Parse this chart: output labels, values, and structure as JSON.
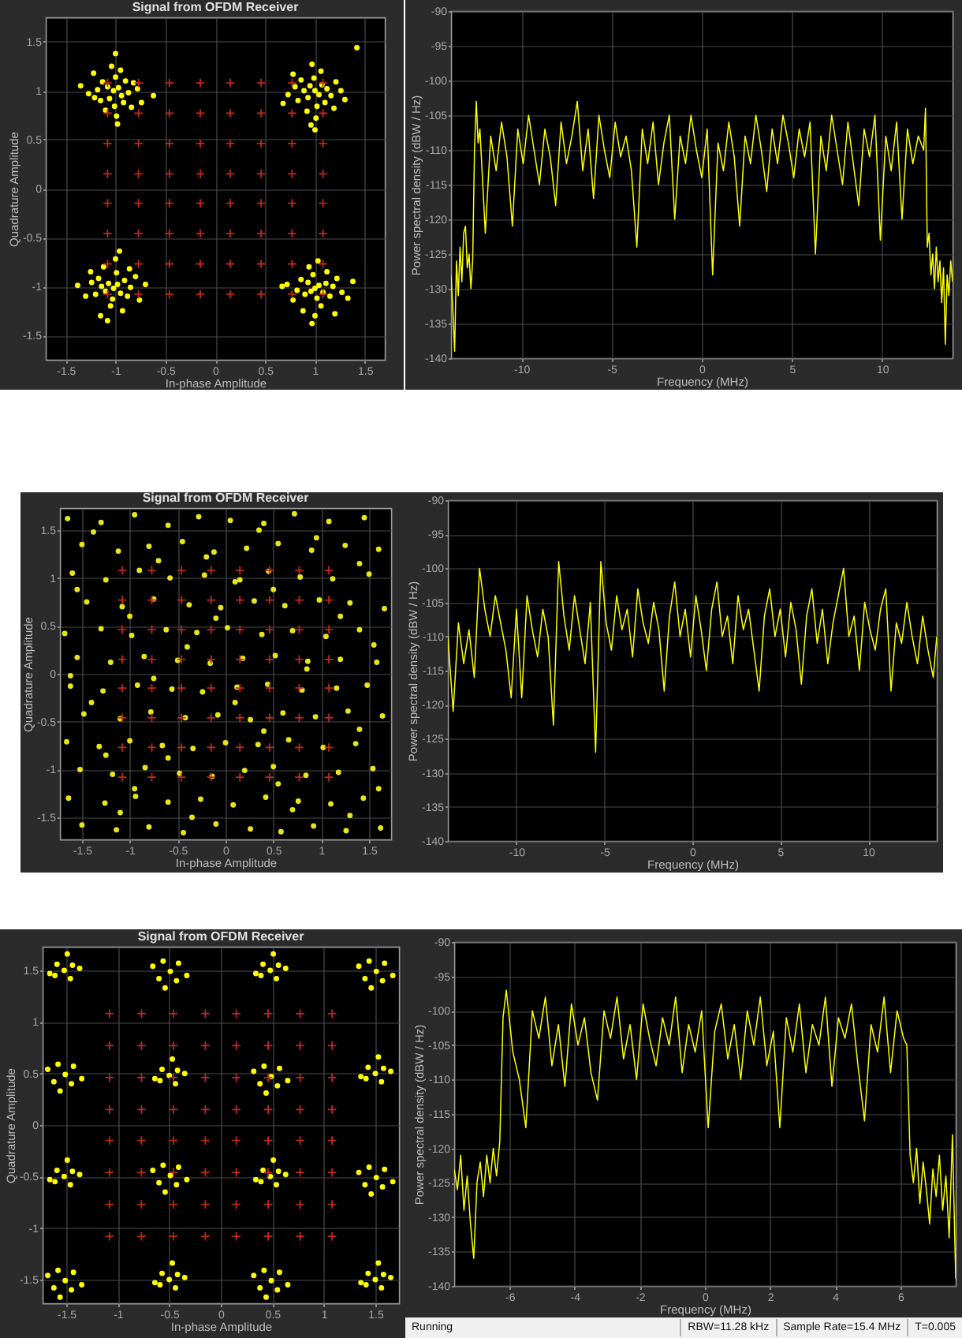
{
  "chart_data": [
    {
      "type": "scatter",
      "title": "Signal from OFDM Receiver",
      "xlabel": "In-phase Amplitude",
      "ylabel": "Quadrature Amplitude",
      "xlim": [
        -1.7,
        1.7
      ],
      "ylim": [
        -1.75,
        1.75
      ],
      "xticks": [
        -1.5,
        -1,
        -0.5,
        0,
        0.5,
        1,
        1.5
      ],
      "yticks": [
        -1.5,
        -1,
        -0.5,
        0,
        0.5,
        1,
        1.5
      ],
      "grid": true,
      "marker": "circle",
      "series": [
        {
          "color": "#ffff00",
          "x": [
            -1.02,
            -0.97,
            -1.08,
            -0.94,
            -1.06,
            -0.9,
            -1.13,
            -0.92,
            -1.15,
            -1.0,
            -0.87,
            -1.18,
            -1.01,
            -0.82,
            -1.21,
            -0.95,
            -1.1,
            -0.84,
            -1.22,
            -0.78,
            -1.27,
            -0.99,
            -1.04,
            -0.74,
            -1.35,
            -0.62,
            -1.0,
            -0.98,
            1.0,
            1.04,
            0.95,
            1.07,
            0.93,
            1.12,
            0.89,
            1.1,
            0.86,
            0.99,
            1.16,
            0.83,
            1.02,
            1.21,
            0.8,
            1.06,
            0.92,
            1.19,
            0.78,
            1.26,
            0.73,
            1.01,
            0.97,
            1.3,
            0.68,
            1.42,
            1.0,
            0.96,
            -1.02,
            -0.98,
            -1.07,
            -0.95,
            -1.1,
            -0.91,
            -1.14,
            -1.03,
            -0.88,
            -1.17,
            -0.99,
            -0.85,
            -1.2,
            -1.05,
            -0.8,
            -1.24,
            -0.93,
            -1.12,
            -0.76,
            -1.3,
            -1.0,
            -0.7,
            -1.38,
            -1.08,
            -0.96,
            -1.15,
            -0.86,
            -1.25,
            1.0,
            1.04,
            0.96,
            1.08,
            0.93,
            1.11,
            0.9,
            1.02,
            1.15,
            0.86,
            1.18,
            0.98,
            0.82,
            1.22,
            1.06,
            0.78,
            1.27,
            0.94,
            1.12,
            0.72,
            1.33,
            1.0,
            0.88,
            1.2,
            0.67,
            1.38,
            1.03,
            0.97
          ],
          "values": [
            1.0,
            1.03,
            1.04,
            0.95,
            0.92,
            1.1,
            1.09,
            0.88,
            0.9,
            1.14,
            0.98,
            1.01,
            0.84,
            1.08,
            0.93,
            1.21,
            0.8,
            0.83,
            1.18,
            1.02,
            0.97,
            0.74,
            1.25,
            0.88,
            1.05,
            0.95,
            1.38,
            0.66,
            1.0,
            0.96,
            1.05,
            1.06,
            0.93,
            1.02,
            1.0,
            0.88,
            1.11,
            1.13,
            0.95,
            0.9,
            0.84,
            1.09,
            1.04,
            1.2,
            0.79,
            0.82,
            1.17,
            1.0,
            0.96,
            0.72,
            1.27,
            0.91,
            0.87,
            1.44,
            0.6,
            0.65,
            -1.02,
            -0.98,
            -0.97,
            -1.07,
            -1.05,
            -0.94,
            -1.0,
            -1.13,
            -1.1,
            -0.92,
            -0.86,
            -1.01,
            -1.08,
            -1.2,
            -0.9,
            -0.96,
            -1.25,
            -0.8,
            -1.14,
            -1.1,
            -0.72,
            -0.98,
            -0.99,
            -1.35,
            -0.64,
            -1.3,
            -0.82,
            -0.85,
            -1.02,
            -0.99,
            -1.05,
            -1.06,
            -0.96,
            -0.97,
            -1.08,
            -1.12,
            -1.1,
            -0.93,
            -1.0,
            -0.88,
            -1.04,
            -0.92,
            -1.2,
            -1.14,
            -1.06,
            -0.8,
            -0.85,
            -0.98,
            -1.12,
            -1.3,
            -1.25,
            -1.28,
            -1.0,
            -0.95,
            -0.74,
            -1.38
          ]
        },
        {
          "color": "#c0281c",
          "marker": "cross",
          "x": [
            -1.08,
            -0.77,
            -0.46,
            -0.15,
            0.15,
            0.46,
            0.77,
            1.08,
            -1.08,
            -0.77,
            -0.46,
            -0.15,
            0.15,
            0.46,
            0.77,
            1.08,
            -1.08,
            -0.77,
            -0.46,
            -0.15,
            0.15,
            0.46,
            0.77,
            1.08,
            -1.08,
            -0.77,
            -0.46,
            -0.15,
            0.15,
            0.46,
            0.77,
            1.08,
            -1.08,
            -0.77,
            -0.46,
            -0.15,
            0.15,
            0.46,
            0.77,
            1.08,
            -1.08,
            -0.77,
            -0.46,
            -0.15,
            0.15,
            0.46,
            0.77,
            1.08,
            -1.08,
            -0.77,
            -0.46,
            -0.15,
            0.15,
            0.46,
            0.77,
            1.08,
            -1.08,
            -0.77,
            -0.46,
            -0.15,
            0.15,
            0.46,
            0.77,
            1.08
          ],
          "values": [
            1.08,
            1.08,
            1.08,
            1.08,
            1.08,
            1.08,
            1.08,
            1.08,
            0.77,
            0.77,
            0.77,
            0.77,
            0.77,
            0.77,
            0.77,
            0.77,
            0.46,
            0.46,
            0.46,
            0.46,
            0.46,
            0.46,
            0.46,
            0.46,
            0.15,
            0.15,
            0.15,
            0.15,
            0.15,
            0.15,
            0.15,
            0.15,
            -0.15,
            -0.15,
            -0.15,
            -0.15,
            -0.15,
            -0.15,
            -0.15,
            -0.15,
            -0.46,
            -0.46,
            -0.46,
            -0.46,
            -0.46,
            -0.46,
            -0.46,
            -0.46,
            -0.77,
            -0.77,
            -0.77,
            -0.77,
            -0.77,
            -0.77,
            -0.77,
            -0.77,
            -1.08,
            -1.08,
            -1.08,
            -1.08,
            -1.08,
            -1.08,
            -1.08,
            -1.08
          ]
        }
      ]
    },
    {
      "type": "line",
      "xlabel": "Frequency (MHz)",
      "ylabel": "Power spectral density (dBW / Hz)",
      "xlim": [
        -13.9,
        13.9
      ],
      "ylim": [
        -140,
        -90
      ],
      "xticks": [
        -10,
        -5,
        0,
        5,
        10
      ],
      "yticks": [
        -140,
        -135,
        -130,
        -125,
        -120,
        -115,
        -110,
        -105,
        -100,
        -95,
        -90
      ],
      "grid": true,
      "x": [
        -13.9,
        -13.8,
        -13.7,
        -13.6,
        -13.5,
        -13.4,
        -13.3,
        -13.2,
        -13.1,
        -13.0,
        -12.9,
        -12.8,
        -12.7,
        -12.6,
        -12.5,
        -12.4,
        -12.3,
        -12,
        -11.7,
        -11.4,
        -11.1,
        -10.8,
        -10.5,
        -10.2,
        -9.9,
        -9.6,
        -9.3,
        -9,
        -8.7,
        -8.4,
        -8.1,
        -7.8,
        -7.5,
        -7.2,
        -6.9,
        -6.6,
        -6.3,
        -6,
        -5.7,
        -5.4,
        -5.1,
        -4.8,
        -4.5,
        -4.2,
        -3.9,
        -3.6,
        -3.3,
        -3,
        -2.7,
        -2.4,
        -2.1,
        -1.8,
        -1.5,
        -1.2,
        -0.9,
        -0.6,
        -0.3,
        0,
        0.3,
        0.6,
        0.9,
        1.2,
        1.5,
        1.8,
        2.1,
        2.4,
        2.7,
        3,
        3.3,
        3.6,
        3.9,
        4.2,
        4.5,
        4.8,
        5.1,
        5.4,
        5.7,
        6,
        6.3,
        6.6,
        6.9,
        7.2,
        7.5,
        7.8,
        8.1,
        8.4,
        8.7,
        9,
        9.3,
        9.6,
        9.9,
        10.2,
        10.5,
        10.8,
        11.1,
        11.4,
        11.7,
        12,
        12.3,
        12.4,
        12.5,
        12.6,
        12.7,
        12.8,
        12.9,
        13.0,
        13.1,
        13.2,
        13.3,
        13.4,
        13.5,
        13.6,
        13.7,
        13.8,
        13.9
      ],
      "series": [
        {
          "color": "#ffff00",
          "values": [
            -128,
            -133,
            -139,
            -126,
            -131,
            -124,
            -129,
            -122,
            -121,
            -127,
            -125,
            -130,
            -126,
            -110,
            -103,
            -109,
            -107,
            -122,
            -108,
            -113,
            -106,
            -111,
            -121,
            -107,
            -112,
            -105,
            -110,
            -115,
            -107,
            -111,
            -118,
            -106,
            -112,
            -108,
            -103,
            -113,
            -107,
            -117,
            -105,
            -110,
            -114,
            -106,
            -111,
            -108,
            -113,
            -124,
            -107,
            -112,
            -106,
            -115,
            -109,
            -105,
            -120,
            -108,
            -112,
            -105,
            -110,
            -114,
            -107,
            -128,
            -109,
            -113,
            -106,
            -111,
            -121,
            -108,
            -112,
            -105,
            -110,
            -116,
            -107,
            -112,
            -105,
            -109,
            -114,
            -107,
            -111,
            -106,
            -125,
            -108,
            -113,
            -105,
            -110,
            -115,
            -106,
            -112,
            -118,
            -107,
            -111,
            -105,
            -123,
            -108,
            -113,
            -106,
            -120,
            -107,
            -112,
            -108,
            -110,
            -104,
            -124,
            -122,
            -128,
            -125,
            -130,
            -124,
            -129,
            -126,
            -132,
            -127,
            -138,
            -128,
            -131,
            -126,
            -129
          ]
        }
      ]
    },
    {
      "type": "scatter",
      "title": "Signal from OFDM Receiver",
      "xlabel": "In-phase Amplitude",
      "ylabel": "Quadrature Amplitude",
      "xlim": [
        -1.73,
        1.73
      ],
      "ylim": [
        -1.73,
        1.73
      ],
      "xticks": [
        -1.5,
        -1,
        -0.5,
        0,
        0.5,
        1,
        1.5
      ],
      "yticks": [
        -1.5,
        -1,
        -0.5,
        0,
        0.5,
        1,
        1.5
      ],
      "grid": true,
      "marker": "circle",
      "series": [
        {
          "color": "#e6e619",
          "x": [
            -1.65,
            -1.3,
            -0.95,
            -0.6,
            -0.28,
            0.05,
            0.4,
            0.72,
            1.08,
            1.45,
            -1.5,
            -1.12,
            -0.8,
            -0.45,
            -0.12,
            0.22,
            0.55,
            0.9,
            1.25,
            1.6,
            -1.6,
            -1.25,
            -0.9,
            -0.58,
            -0.22,
            0.1,
            0.45,
            0.78,
            1.12,
            1.5,
            -1.45,
            -1.08,
            -0.75,
            -0.38,
            -0.05,
            0.3,
            0.62,
            0.98,
            1.3,
            1.66,
            -1.68,
            -1.3,
            -0.98,
            -0.62,
            -0.3,
            0.02,
            0.38,
            0.7,
            1.05,
            1.4,
            -1.55,
            -1.2,
            -0.85,
            -0.5,
            -0.16,
            0.18,
            0.52,
            0.86,
            1.2,
            1.58,
            -1.62,
            -1.28,
            -0.92,
            -0.56,
            -0.24,
            0.12,
            0.44,
            0.8,
            1.16,
            1.48,
            -1.48,
            -1.1,
            -0.78,
            -0.42,
            -0.08,
            0.26,
            0.6,
            0.94,
            1.28,
            1.64,
            -1.66,
            -1.32,
            -1.0,
            -0.66,
            -0.34,
            0.0,
            0.34,
            0.66,
            1.02,
            1.36,
            -1.52,
            -1.18,
            -0.84,
            -0.48,
            -0.14,
            0.2,
            0.5,
            0.84,
            1.18,
            1.54,
            -1.64,
            -1.26,
            -0.94,
            -0.6,
            -0.26,
            0.08,
            0.42,
            0.76,
            1.1,
            1.44,
            -1.5,
            -1.14,
            -0.8,
            -0.44,
            -0.1,
            0.26,
            0.58,
            0.92,
            1.26,
            1.62,
            -1.38,
            -0.7,
            0.35,
            1.4,
            -1.0,
            0.5,
            1.55,
            -0.4,
            0.85,
            -1.4,
            0.1,
            1.4,
            -0.6,
            0.55,
            -1.1,
            1.3,
            -0.2,
            0.95,
            -1.55,
            -0.1,
            1.2,
            -0.75,
            0.4,
            -1.25,
            0.7,
            -0.35,
            1.6,
            -1.62,
            0.15,
            -0.95
          ],
          "values": [
            1.62,
            1.58,
            1.66,
            1.55,
            1.64,
            1.6,
            1.57,
            1.67,
            1.59,
            1.63,
            1.35,
            1.28,
            1.33,
            1.38,
            1.27,
            1.31,
            1.36,
            1.29,
            1.34,
            1.3,
            1.05,
            0.98,
            1.08,
            1.0,
            1.03,
            0.96,
            1.07,
            1.01,
            0.99,
            1.04,
            0.75,
            0.7,
            0.78,
            0.72,
            0.69,
            0.76,
            0.71,
            0.77,
            0.74,
            0.68,
            0.42,
            0.47,
            0.4,
            0.46,
            0.43,
            0.48,
            0.41,
            0.45,
            0.39,
            0.46,
            0.17,
            0.12,
            0.18,
            0.14,
            0.11,
            0.16,
            0.19,
            0.13,
            0.15,
            0.12,
            -0.13,
            -0.18,
            -0.12,
            -0.16,
            -0.19,
            -0.14,
            -0.11,
            -0.17,
            -0.15,
            -0.12,
            -0.42,
            -0.47,
            -0.4,
            -0.46,
            -0.43,
            -0.48,
            -0.41,
            -0.45,
            -0.39,
            -0.44,
            -0.71,
            -0.76,
            -0.7,
            -0.75,
            -0.78,
            -0.72,
            -0.74,
            -0.69,
            -0.77,
            -0.73,
            -1.0,
            -1.05,
            -0.98,
            -1.04,
            -1.07,
            -1.01,
            -0.97,
            -1.06,
            -1.03,
            -0.99,
            -1.3,
            -1.35,
            -1.28,
            -1.34,
            -1.31,
            -1.37,
            -1.29,
            -1.33,
            -1.36,
            -1.3,
            -1.58,
            -1.63,
            -1.6,
            -1.66,
            -1.57,
            -1.62,
            -1.65,
            -1.59,
            -1.64,
            -1.61,
            1.48,
            1.18,
            1.5,
            1.15,
            0.6,
            0.88,
            0.3,
            0.28,
            0.05,
            -0.3,
            -0.3,
            -0.58,
            -0.88,
            -1.15,
            -1.45,
            -1.48,
            1.22,
            1.42,
            0.88,
            0.58,
            0.6,
            -0.05,
            -0.6,
            -0.85,
            -1.42,
            -1.5,
            -1.2,
            -0.02,
            0.98,
            -1.2
          ]
        },
        {
          "color": "#c0281c",
          "marker": "cross",
          "x": [
            -1.08,
            -0.77,
            -0.46,
            -0.15,
            0.15,
            0.46,
            0.77,
            1.08,
            -1.08,
            -0.77,
            -0.46,
            -0.15,
            0.15,
            0.46,
            0.77,
            1.08,
            -1.08,
            -0.77,
            -0.46,
            -0.15,
            0.15,
            0.46,
            0.77,
            1.08,
            -1.08,
            -0.77,
            -0.46,
            -0.15,
            0.15,
            0.46,
            0.77,
            1.08,
            -1.08,
            -0.77,
            -0.46,
            -0.15,
            0.15,
            0.46,
            0.77,
            1.08,
            -1.08,
            -0.77,
            -0.46,
            -0.15,
            0.15,
            0.46,
            0.77,
            1.08,
            -1.08,
            -0.77,
            -0.46,
            -0.15,
            0.15,
            0.46,
            0.77,
            1.08,
            -1.08,
            -0.77,
            -0.46,
            -0.15,
            0.15,
            0.46,
            0.77,
            1.08
          ],
          "values": [
            1.08,
            1.08,
            1.08,
            1.08,
            1.08,
            1.08,
            1.08,
            1.08,
            0.77,
            0.77,
            0.77,
            0.77,
            0.77,
            0.77,
            0.77,
            0.77,
            0.46,
            0.46,
            0.46,
            0.46,
            0.46,
            0.46,
            0.46,
            0.46,
            0.15,
            0.15,
            0.15,
            0.15,
            0.15,
            0.15,
            0.15,
            0.15,
            -0.15,
            -0.15,
            -0.15,
            -0.15,
            -0.15,
            -0.15,
            -0.15,
            -0.15,
            -0.46,
            -0.46,
            -0.46,
            -0.46,
            -0.46,
            -0.46,
            -0.46,
            -0.46,
            -0.77,
            -0.77,
            -0.77,
            -0.77,
            -0.77,
            -0.77,
            -0.77,
            -0.77,
            -1.08,
            -1.08,
            -1.08,
            -1.08,
            -1.08,
            -1.08,
            -1.08,
            -1.08
          ]
        }
      ]
    },
    {
      "type": "line",
      "xlabel": "Frequency (MHz)",
      "ylabel": "Power spectral density (dBW / Hz)",
      "xlim": [
        -13.9,
        13.9
      ],
      "ylim": [
        -140,
        -90
      ],
      "xticks": [
        -10,
        -5,
        0,
        5,
        10
      ],
      "yticks": [
        -140,
        -135,
        -130,
        -125,
        -120,
        -115,
        -110,
        -105,
        -100,
        -95,
        -90
      ],
      "grid": true,
      "x": [
        -13.9,
        -13.6,
        -13.3,
        -13.0,
        -12.7,
        -12.4,
        -12.1,
        -11.8,
        -11.5,
        -11.2,
        -10.9,
        -10.6,
        -10.3,
        -10.0,
        -9.7,
        -9.4,
        -9.1,
        -8.8,
        -8.5,
        -8.2,
        -7.9,
        -7.6,
        -7.3,
        -7.0,
        -6.7,
        -6.4,
        -6.1,
        -5.8,
        -5.5,
        -5.2,
        -4.9,
        -4.6,
        -4.3,
        -4.0,
        -3.7,
        -3.4,
        -3.1,
        -2.8,
        -2.5,
        -2.2,
        -1.9,
        -1.6,
        -1.3,
        -1.0,
        -0.7,
        -0.4,
        -0.1,
        0.2,
        0.5,
        0.8,
        1.1,
        1.4,
        1.7,
        2.0,
        2.3,
        2.6,
        2.9,
        3.2,
        3.5,
        3.8,
        4.1,
        4.4,
        4.7,
        5.0,
        5.3,
        5.6,
        5.9,
        6.2,
        6.5,
        6.8,
        7.1,
        7.4,
        7.7,
        8.0,
        8.3,
        8.6,
        8.9,
        9.2,
        9.5,
        9.8,
        10.1,
        10.4,
        10.7,
        11.0,
        11.3,
        11.6,
        11.9,
        12.2,
        12.5,
        12.8,
        13.1,
        13.4,
        13.7,
        13.9
      ],
      "series": [
        {
          "color": "#ffff00",
          "values": [
            -110,
            -121,
            -108,
            -114,
            -109,
            -116,
            -100,
            -106,
            -110,
            -104,
            -108,
            -112,
            -119,
            -106,
            -119,
            -104,
            -109,
            -113,
            -106,
            -110,
            -123,
            -99,
            -107,
            -112,
            -104,
            -109,
            -114,
            -105,
            -127,
            -99,
            -108,
            -112,
            -104,
            -109,
            -106,
            -113,
            -103,
            -108,
            -111,
            -105,
            -109,
            -118,
            -107,
            -102,
            -110,
            -106,
            -113,
            -104,
            -109,
            -115,
            -106,
            -102,
            -110,
            -107,
            -114,
            -104,
            -109,
            -106,
            -112,
            -118,
            -107,
            -103,
            -110,
            -106,
            -113,
            -105,
            -109,
            -117,
            -107,
            -103,
            -111,
            -106,
            -114,
            -108,
            -104,
            -100,
            -110,
            -107,
            -115,
            -105,
            -109,
            -112,
            -106,
            -103,
            -118,
            -108,
            -111,
            -105,
            -110,
            -114,
            -107,
            -112,
            -116,
            -110
          ]
        }
      ]
    },
    {
      "type": "scatter",
      "title": "Signal from OFDM Receiver",
      "xlabel": "In-phase Amplitude",
      "ylabel": "Quadrature Amplitude",
      "xlim": [
        -1.73,
        1.73
      ],
      "ylim": [
        -1.73,
        1.73
      ],
      "xticks": [
        -1.5,
        -1,
        -0.5,
        0,
        0.5,
        1,
        1.5
      ],
      "yticks": [
        -1.5,
        -1,
        -0.5,
        0,
        0.5,
        1,
        1.5
      ],
      "grid": true,
      "marker": "circle",
      "series": [
        {
          "color": "#ffff00",
          "x": [
            -1.52,
            -1.44,
            -1.59,
            -1.46,
            -1.61,
            -1.37,
            -1.66,
            -1.49,
            -0.49,
            -0.56,
            -0.41,
            -0.6,
            -0.43,
            -0.66,
            -0.33,
            -0.54,
            0.48,
            0.56,
            0.41,
            0.54,
            0.39,
            0.63,
            0.34,
            0.51,
            1.51,
            1.44,
            1.59,
            1.4,
            1.57,
            1.34,
            1.67,
            1.46,
            -1.51,
            -1.58,
            -1.43,
            -1.62,
            -1.45,
            -1.68,
            -1.35,
            -1.56,
            -0.5,
            -0.42,
            -0.57,
            -0.44,
            -0.59,
            -0.35,
            -0.64,
            -0.47,
            0.49,
            0.42,
            0.57,
            0.38,
            0.55,
            0.32,
            0.65,
            0.44,
            1.5,
            1.58,
            1.43,
            1.56,
            1.41,
            1.65,
            1.36,
            1.53,
            -1.52,
            -1.44,
            -1.59,
            -1.46,
            -1.61,
            -1.37,
            -1.66,
            -1.49,
            -0.49,
            -0.56,
            -0.41,
            -0.6,
            -0.43,
            -0.66,
            -0.33,
            -0.54,
            0.48,
            0.56,
            0.41,
            0.54,
            0.39,
            0.63,
            0.34,
            0.51,
            1.51,
            1.44,
            1.59,
            1.4,
            1.57,
            1.34,
            1.67,
            1.46,
            -1.51,
            -1.58,
            -1.43,
            -1.62,
            -1.45,
            -1.68,
            -1.35,
            -1.56,
            -0.5,
            -0.42,
            -0.57,
            -0.44,
            -0.59,
            -0.35,
            -0.64,
            -0.47,
            0.49,
            0.42,
            0.57,
            0.38,
            0.55,
            0.32,
            0.65,
            0.44,
            1.5,
            1.58,
            1.43,
            1.56,
            1.41,
            1.65,
            1.36,
            1.53
          ],
          "values": [
            1.5,
            1.55,
            1.56,
            1.42,
            1.45,
            1.52,
            1.47,
            1.66,
            1.49,
            1.59,
            1.57,
            1.42,
            1.4,
            1.54,
            1.45,
            1.33,
            1.5,
            1.55,
            1.56,
            1.42,
            1.45,
            1.52,
            1.47,
            1.66,
            1.49,
            1.59,
            1.57,
            1.42,
            1.4,
            1.54,
            1.45,
            1.33,
            0.49,
            0.59,
            0.57,
            0.42,
            0.4,
            0.54,
            0.45,
            0.33,
            0.48,
            0.53,
            0.54,
            0.4,
            0.43,
            0.5,
            0.45,
            0.64,
            0.47,
            0.57,
            0.55,
            0.4,
            0.38,
            0.52,
            0.43,
            0.31,
            0.5,
            0.55,
            0.56,
            0.42,
            0.45,
            0.52,
            0.47,
            0.66,
            -0.5,
            -0.45,
            -0.44,
            -0.58,
            -0.55,
            -0.48,
            -0.53,
            -0.34,
            -0.49,
            -0.39,
            -0.41,
            -0.56,
            -0.58,
            -0.44,
            -0.53,
            -0.65,
            -0.5,
            -0.45,
            -0.44,
            -0.58,
            -0.55,
            -0.48,
            -0.53,
            -0.34,
            -0.51,
            -0.41,
            -0.43,
            -0.58,
            -0.6,
            -0.46,
            -0.55,
            -0.67,
            -1.51,
            -1.41,
            -1.43,
            -1.58,
            -1.6,
            -1.46,
            -1.55,
            -1.67,
            -1.5,
            -1.45,
            -1.44,
            -1.58,
            -1.55,
            -1.48,
            -1.53,
            -1.34,
            -1.51,
            -1.41,
            -1.43,
            -1.58,
            -1.6,
            -1.46,
            -1.55,
            -1.67,
            -1.5,
            -1.45,
            -1.44,
            -1.58,
            -1.55,
            -1.48,
            -1.53,
            -1.34
          ]
        },
        {
          "color": "#c0281c",
          "marker": "cross",
          "x": [
            -1.08,
            -0.77,
            -0.46,
            -0.15,
            0.15,
            0.46,
            0.77,
            1.08,
            -1.08,
            -0.77,
            -0.46,
            -0.15,
            0.15,
            0.46,
            0.77,
            1.08,
            -1.08,
            -0.77,
            -0.46,
            -0.15,
            0.15,
            0.46,
            0.77,
            1.08,
            -1.08,
            -0.77,
            -0.46,
            -0.15,
            0.15,
            0.46,
            0.77,
            1.08,
            -1.08,
            -0.77,
            -0.46,
            -0.15,
            0.15,
            0.46,
            0.77,
            1.08,
            -1.08,
            -0.77,
            -0.46,
            -0.15,
            0.15,
            0.46,
            0.77,
            1.08,
            -1.08,
            -0.77,
            -0.46,
            -0.15,
            0.15,
            0.46,
            0.77,
            1.08,
            -1.08,
            -0.77,
            -0.46,
            -0.15,
            0.15,
            0.46,
            0.77,
            1.08
          ],
          "values": [
            1.08,
            1.08,
            1.08,
            1.08,
            1.08,
            1.08,
            1.08,
            1.08,
            0.77,
            0.77,
            0.77,
            0.77,
            0.77,
            0.77,
            0.77,
            0.77,
            0.46,
            0.46,
            0.46,
            0.46,
            0.46,
            0.46,
            0.46,
            0.46,
            0.15,
            0.15,
            0.15,
            0.15,
            0.15,
            0.15,
            0.15,
            0.15,
            -0.15,
            -0.15,
            -0.15,
            -0.15,
            -0.15,
            -0.15,
            -0.15,
            -0.15,
            -0.46,
            -0.46,
            -0.46,
            -0.46,
            -0.46,
            -0.46,
            -0.46,
            -0.46,
            -0.77,
            -0.77,
            -0.77,
            -0.77,
            -0.77,
            -0.77,
            -0.77,
            -0.77,
            -1.08,
            -1.08,
            -1.08,
            -1.08,
            -1.08,
            -1.08,
            -1.08,
            -1.08
          ]
        }
      ]
    },
    {
      "type": "line",
      "xlabel": "Frequency (MHz)",
      "ylabel": "Power spectral density (dBW / Hz)",
      "xlim": [
        -7.7,
        7.7
      ],
      "ylim": [
        -140,
        -90
      ],
      "xticks": [
        -6,
        -4,
        -2,
        0,
        2,
        4,
        6
      ],
      "yticks": [
        -140,
        -135,
        -130,
        -125,
        -120,
        -115,
        -110,
        -105,
        -100,
        -95,
        -90
      ],
      "grid": true,
      "annotations": [
        "Running",
        "RBW=11.28 kHz",
        "Sample Rate=15.4 MHz",
        "T=0.005"
      ],
      "x": [
        -7.7,
        -7.6,
        -7.5,
        -7.4,
        -7.3,
        -7.2,
        -7.1,
        -7,
        -6.9,
        -6.8,
        -6.7,
        -6.6,
        -6.5,
        -6.4,
        -6.3,
        -6.2,
        -6.1,
        -5.9,
        -5.7,
        -5.5,
        -5.3,
        -5.1,
        -4.9,
        -4.7,
        -4.5,
        -4.3,
        -4.1,
        -3.9,
        -3.7,
        -3.5,
        -3.3,
        -3.1,
        -2.9,
        -2.7,
        -2.5,
        -2.3,
        -2.1,
        -1.9,
        -1.7,
        -1.5,
        -1.3,
        -1.1,
        -0.9,
        -0.7,
        -0.5,
        -0.3,
        -0.1,
        0.1,
        0.3,
        0.5,
        0.7,
        0.9,
        1.1,
        1.3,
        1.5,
        1.7,
        1.9,
        2.1,
        2.3,
        2.5,
        2.7,
        2.9,
        3.1,
        3.3,
        3.5,
        3.7,
        3.9,
        4.1,
        4.3,
        4.5,
        4.7,
        4.9,
        5.1,
        5.3,
        5.5,
        5.7,
        5.9,
        6.1,
        6.2,
        6.3,
        6.4,
        6.5,
        6.6,
        6.7,
        6.8,
        6.9,
        7,
        7.1,
        7.2,
        7.3,
        7.4,
        7.5,
        7.6,
        7.7
      ],
      "series": [
        {
          "color": "#ffff00",
          "values": [
            -123,
            -126,
            -121,
            -129,
            -124,
            -131,
            -136,
            -125,
            -122,
            -127,
            -121,
            -125,
            -120,
            -124,
            -119,
            -101,
            -97,
            -106,
            -110,
            -117,
            -100,
            -104,
            -98,
            -108,
            -102,
            -111,
            -99,
            -105,
            -101,
            -109,
            -113,
            -100,
            -104,
            -98,
            -107,
            -102,
            -110,
            -99,
            -104,
            -108,
            -101,
            -105,
            -98,
            -109,
            -102,
            -106,
            -100,
            -117,
            -103,
            -99,
            -107,
            -102,
            -110,
            -100,
            -105,
            -98,
            -108,
            -103,
            -117,
            -101,
            -106,
            -99,
            -109,
            -102,
            -105,
            -98,
            -111,
            -101,
            -104,
            -99,
            -108,
            -116,
            -102,
            -106,
            -98,
            -109,
            -100,
            -104,
            -105,
            -121,
            -125,
            -120,
            -128,
            -122,
            -126,
            -131,
            -123,
            -127,
            -121,
            -129,
            -124,
            -133,
            -118,
            -139
          ]
        }
      ]
    }
  ]
}
